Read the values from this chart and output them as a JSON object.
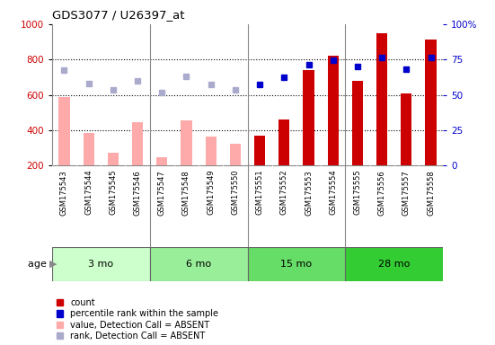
{
  "title": "GDS3077 / U26397_at",
  "samples": [
    "GSM175543",
    "GSM175544",
    "GSM175545",
    "GSM175546",
    "GSM175547",
    "GSM175548",
    "GSM175549",
    "GSM175550",
    "GSM175551",
    "GSM175552",
    "GSM175553",
    "GSM175554",
    "GSM175555",
    "GSM175556",
    "GSM175557",
    "GSM175558"
  ],
  "bar_values_absent": [
    590,
    385,
    275,
    445,
    245,
    455,
    365,
    325,
    null,
    null,
    null,
    null,
    null,
    null,
    null,
    null
  ],
  "bar_values_present": [
    null,
    null,
    null,
    null,
    null,
    null,
    null,
    null,
    370,
    460,
    740,
    820,
    680,
    950,
    610,
    915
  ],
  "dot_values_absent": [
    740,
    665,
    630,
    680,
    615,
    705,
    660,
    630,
    null,
    null,
    null,
    null,
    null,
    null,
    null,
    null
  ],
  "dot_values_present": [
    null,
    null,
    null,
    null,
    null,
    null,
    null,
    null,
    660,
    700,
    770,
    795,
    760,
    810,
    745,
    810
  ],
  "ylim": [
    200,
    1000
  ],
  "y2lim": [
    0,
    100
  ],
  "yticks": [
    200,
    400,
    600,
    800,
    1000
  ],
  "y2ticks": [
    0,
    25,
    50,
    75,
    100
  ],
  "age_groups": [
    {
      "label": "3 mo",
      "start": 0,
      "end": 4,
      "color": "#ccffcc"
    },
    {
      "label": "6 mo",
      "start": 4,
      "end": 8,
      "color": "#99ee99"
    },
    {
      "label": "15 mo",
      "start": 8,
      "end": 12,
      "color": "#66dd66"
    },
    {
      "label": "28 mo",
      "start": 12,
      "end": 16,
      "color": "#33cc33"
    }
  ],
  "bar_color_absent": "#ffaaaa",
  "bar_color_present": "#cc0000",
  "dot_color_absent": "#aaaacc",
  "dot_color_present": "#0000cc",
  "bg_color": "#cccccc",
  "label_row_color": "#bbbbbb",
  "age_group_colors_alt": [
    "#ccffcc",
    "#99ee99",
    "#66dd66",
    "#33cc33"
  ],
  "ytick_color": "#cc0000",
  "y2tick_color": "#0000cc",
  "grid_yticks": [
    400,
    600,
    800
  ]
}
